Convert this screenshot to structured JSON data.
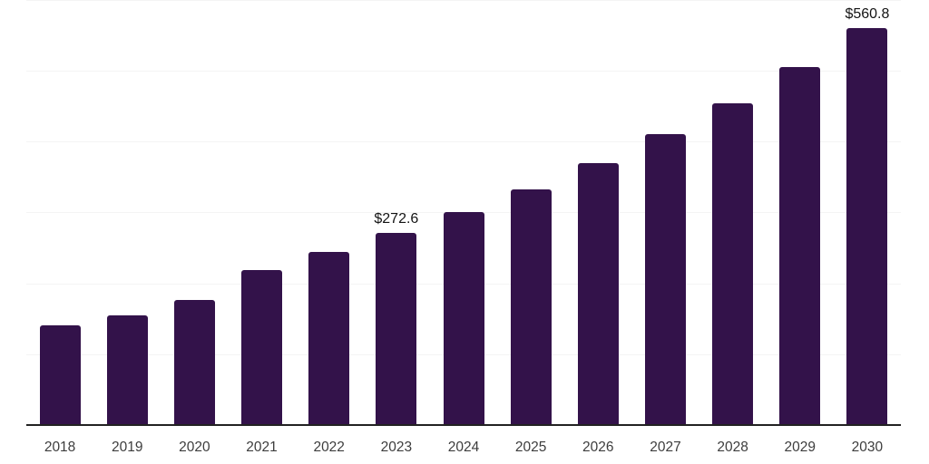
{
  "chart_data": {
    "type": "bar",
    "categories": [
      "2018",
      "2019",
      "2020",
      "2021",
      "2022",
      "2023",
      "2024",
      "2025",
      "2026",
      "2027",
      "2028",
      "2029",
      "2030"
    ],
    "values": [
      142.3,
      156.3,
      177.7,
      219.5,
      245.0,
      272.6,
      301.7,
      333.6,
      370.3,
      411.2,
      455.5,
      506.2,
      560.8
    ],
    "data_labels": [
      {
        "index": 5,
        "text": "$272.6"
      },
      {
        "index": 12,
        "text": "$560.8"
      }
    ],
    "title": "",
    "xlabel": "",
    "ylabel": "",
    "ylim": [
      0,
      600
    ],
    "grid_step": 100,
    "grid": "on",
    "legend": "none",
    "y_tick_labels_visible": false,
    "colors": {
      "bar": "#33124a",
      "grid_line": "#f4f4f4",
      "axis_line": "#222222",
      "tick_label": "#3d3d3d",
      "data_label": "#141414",
      "background": "#ffffff"
    }
  }
}
